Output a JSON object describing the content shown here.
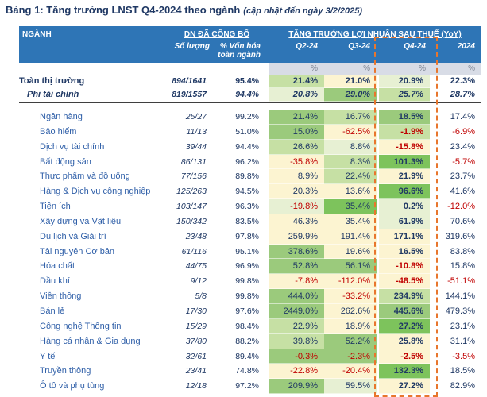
{
  "title": {
    "main": "Bảng 1: Tăng trưởng LNST Q4-2024 theo ngành",
    "note": "(cập nhật đến ngày 3/2/2025)"
  },
  "header": {
    "nganh": "NGÀNH",
    "group_published": "DN ĐÃ CÔNG BỐ",
    "group_growth": "TĂNG TRƯỞNG LỢI NHUẬN SAU THUẾ (YoY)",
    "sub": [
      "Số lượng",
      "% Vốn hóa toàn ngành",
      "Q2-24",
      "Q3-24",
      "Q4-24",
      "2024"
    ],
    "units": [
      "%",
      "%",
      "%",
      "%"
    ]
  },
  "colors": {
    "header_bg": "#2e75b6",
    "unit_bg": "#d8dce6",
    "title": "#1f3864",
    "value": "#1f3864",
    "sector_name": "#2f5fa8",
    "negative": "#c00000",
    "dash": "#e8762d"
  },
  "palette": {
    "g1": "#7dc35c",
    "g2": "#9bca7c",
    "g3": "#c6e0a4",
    "g4": "#e7f0d3",
    "cr": "#fcf4d1",
    "none": ""
  },
  "summary_rows": [
    {
      "name": "Toàn thị trường",
      "count": "894/1641",
      "cap": "95.4%",
      "vals": [
        "21.4%",
        "21.0%",
        "20.9%",
        "22.3%"
      ],
      "bg": [
        "g3",
        "cr",
        "g4",
        "none"
      ]
    },
    {
      "name": "Phi tài chính",
      "count": "819/1557",
      "cap": "94.4%",
      "vals": [
        "20.8%",
        "29.0%",
        "25.7%",
        "28.7%"
      ],
      "bg": [
        "g4",
        "g2",
        "g3",
        "none"
      ]
    }
  ],
  "sector_rows": [
    {
      "name": "Ngân hàng",
      "count": "25/27",
      "cap": "99.2%",
      "vals": [
        "21.4%",
        "16.7%",
        "18.5%",
        "17.4%"
      ],
      "bg": [
        "g2",
        "g3",
        "g2",
        "none"
      ]
    },
    {
      "name": "Bảo hiểm",
      "count": "11/13",
      "cap": "51.0%",
      "vals": [
        "15.0%",
        "-62.5%",
        "-1.9%",
        "-6.9%"
      ],
      "bg": [
        "g2",
        "cr",
        "g3",
        "none"
      ]
    },
    {
      "name": "Dịch vụ tài chính",
      "count": "39/44",
      "cap": "94.4%",
      "vals": [
        "26.6%",
        "8.8%",
        "-15.8%",
        "23.4%"
      ],
      "bg": [
        "g3",
        "g4",
        "cr",
        "none"
      ]
    },
    {
      "name": "Bất động sản",
      "count": "86/131",
      "cap": "96.2%",
      "vals": [
        "-35.8%",
        "8.3%",
        "101.3%",
        "-5.7%"
      ],
      "bg": [
        "cr",
        "g3",
        "g1",
        "none"
      ]
    },
    {
      "name": "Thực phẩm và đồ uống",
      "count": "77/156",
      "cap": "89.8%",
      "vals": [
        "8.9%",
        "22.4%",
        "21.9%",
        "23.7%"
      ],
      "bg": [
        "cr",
        "g3",
        "cr",
        "none"
      ]
    },
    {
      "name": "Hàng & Dịch vụ công nghiệp",
      "count": "125/263",
      "cap": "94.5%",
      "vals": [
        "20.3%",
        "13.6%",
        "96.6%",
        "41.6%"
      ],
      "bg": [
        "cr",
        "cr",
        "g1",
        "none"
      ]
    },
    {
      "name": "Tiện ích",
      "count": "103/147",
      "cap": "96.3%",
      "vals": [
        "-19.8%",
        "35.4%",
        "0.2%",
        "-12.0%"
      ],
      "bg": [
        "g4",
        "g1",
        "g4",
        "none"
      ]
    },
    {
      "name": "Xây dựng và Vật liệu",
      "count": "150/342",
      "cap": "83.5%",
      "vals": [
        "46.3%",
        "35.4%",
        "61.9%",
        "70.6%"
      ],
      "bg": [
        "cr",
        "cr",
        "g4",
        "none"
      ]
    },
    {
      "name": "Du lịch và Giải trí",
      "count": "23/48",
      "cap": "97.8%",
      "vals": [
        "259.9%",
        "191.4%",
        "171.1%",
        "319.6%"
      ],
      "bg": [
        "cr",
        "cr",
        "cr",
        "none"
      ]
    },
    {
      "name": "Tài nguyên Cơ bản",
      "count": "61/116",
      "cap": "95.1%",
      "vals": [
        "378.6%",
        "19.6%",
        "16.5%",
        "83.8%"
      ],
      "bg": [
        "g2",
        "cr",
        "cr",
        "none"
      ]
    },
    {
      "name": "Hóa chất",
      "count": "44/75",
      "cap": "96.9%",
      "vals": [
        "52.8%",
        "56.1%",
        "-10.8%",
        "15.8%"
      ],
      "bg": [
        "g2",
        "g2",
        "cr",
        "none"
      ]
    },
    {
      "name": "Dầu khí",
      "count": "9/12",
      "cap": "99.8%",
      "vals": [
        "-7.8%",
        "-112.0%",
        "-48.5%",
        "-51.1%"
      ],
      "bg": [
        "cr",
        "cr",
        "cr",
        "none"
      ]
    },
    {
      "name": "Viễn thông",
      "count": "5/8",
      "cap": "99.8%",
      "vals": [
        "444.0%",
        "-33.2%",
        "234.9%",
        "144.1%"
      ],
      "bg": [
        "g2",
        "cr",
        "g3",
        "none"
      ]
    },
    {
      "name": "Bán lẻ",
      "count": "17/30",
      "cap": "97.6%",
      "vals": [
        "2449.0%",
        "262.6%",
        "445.6%",
        "479.3%"
      ],
      "bg": [
        "g2",
        "cr",
        "g2",
        "none"
      ]
    },
    {
      "name": "Công nghệ Thông tin",
      "count": "15/29",
      "cap": "98.4%",
      "vals": [
        "22.9%",
        "18.9%",
        "27.2%",
        "23.1%"
      ],
      "bg": [
        "g3",
        "cr",
        "g1",
        "none"
      ]
    },
    {
      "name": "Hàng cá nhân & Gia dụng",
      "count": "37/80",
      "cap": "88.2%",
      "vals": [
        "39.8%",
        "52.2%",
        "25.8%",
        "31.1%"
      ],
      "bg": [
        "g3",
        "g2",
        "cr",
        "none"
      ]
    },
    {
      "name": "Y tế",
      "count": "32/61",
      "cap": "89.4%",
      "vals": [
        "-0.3%",
        "-2.3%",
        "-2.5%",
        "-3.5%"
      ],
      "bg": [
        "g2",
        "g2",
        "cr",
        "none"
      ]
    },
    {
      "name": "Truyền thông",
      "count": "23/41",
      "cap": "74.8%",
      "vals": [
        "-22.8%",
        "-20.4%",
        "132.3%",
        "18.5%"
      ],
      "bg": [
        "cr",
        "cr",
        "g1",
        "none"
      ]
    },
    {
      "name": "Ô tô và phụ tùng",
      "count": "12/18",
      "cap": "97.2%",
      "vals": [
        "209.9%",
        "59.5%",
        "27.2%",
        "82.9%"
      ],
      "bg": [
        "g2",
        "g4",
        "cr",
        "none"
      ]
    }
  ]
}
